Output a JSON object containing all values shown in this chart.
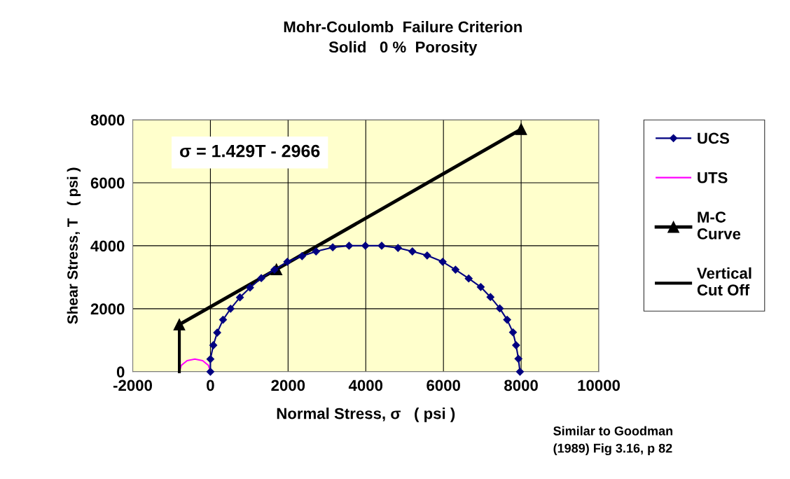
{
  "chart_data": {
    "type": "line",
    "title": "Mohr-Coulomb  Failure Criterion\nSolid   0 %  Porosity",
    "xlabel": "Normal Stress, σ   ( psi )",
    "ylabel": "Shear Stress, T   ( psi )",
    "annotations": [
      "σ = 1.429T - 2966",
      "Similar to Goodman\n(1989) Fig 3.16, p 82"
    ],
    "xlim": [
      -2000,
      10000
    ],
    "xticks": [
      -2000,
      0,
      2000,
      4000,
      6000,
      8000,
      10000
    ],
    "ylim": [
      0,
      8000
    ],
    "yticks": [
      0,
      2000,
      4000,
      6000,
      8000
    ],
    "grid": true,
    "legend": "right",
    "series": [
      {
        "name": "UCS",
        "color": "#000080",
        "marker": "diamond",
        "x": [
          0,
          0,
          75,
          175,
          325,
          520,
          760,
          1020,
          1310,
          1650,
          1980,
          2360,
          2720,
          3150,
          3570,
          3990,
          4410,
          4830,
          5200,
          5580,
          5980,
          6310,
          6650,
          6960,
          7210,
          7450,
          7640,
          7790,
          7870,
          7930,
          7970
        ],
        "values": [
          0,
          400,
          840,
          1240,
          1650,
          2000,
          2360,
          2670,
          2970,
          3240,
          3490,
          3670,
          3820,
          3950,
          4000,
          4000,
          4000,
          3930,
          3820,
          3690,
          3490,
          3240,
          2960,
          2690,
          2370,
          2010,
          1650,
          1250,
          840,
          410,
          0
        ]
      },
      {
        "name": "UTS",
        "color": "#ff00ff",
        "marker": "none",
        "x": [
          -800,
          -750,
          -600,
          -400,
          -200,
          -50,
          0
        ],
        "values": [
          0,
          200,
          350,
          400,
          350,
          200,
          0
        ]
      },
      {
        "name": "M-C\nCurve",
        "color": "#000000",
        "marker": "triangle",
        "x": [
          -800,
          1700,
          8000
        ],
        "values": [
          1500,
          3250,
          7700
        ]
      },
      {
        "name": "Vertical\nCut Off",
        "color": "#000000",
        "marker": "none",
        "x": [
          -800,
          -800
        ],
        "values": [
          0,
          1500
        ]
      }
    ]
  }
}
